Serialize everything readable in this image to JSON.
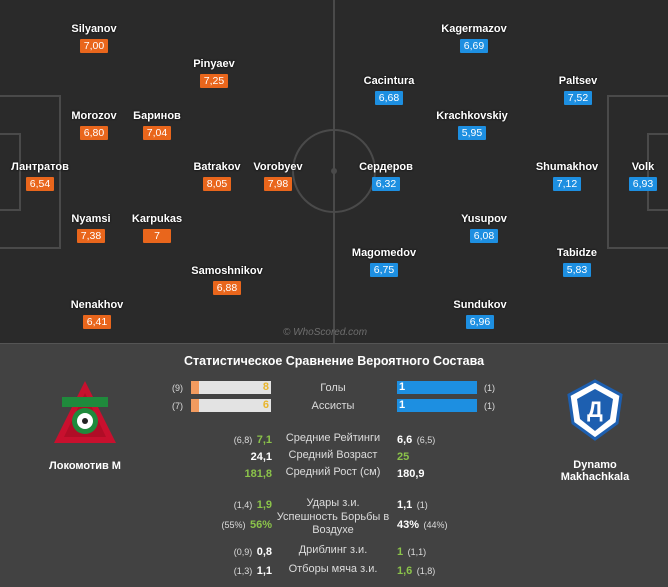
{
  "watermark": "© WhoScored.com",
  "home_players": [
    {
      "name": "Silyanov",
      "rating": "7,00"
    },
    {
      "name": "Pinyaev",
      "rating": "7,25"
    },
    {
      "name": "Morozov",
      "rating": "6,80"
    },
    {
      "name": "Баринов",
      "rating": "7,04"
    },
    {
      "name": "Лантратов",
      "rating": "6,54"
    },
    {
      "name": "Batrakov",
      "rating": "8,05"
    },
    {
      "name": "Vorobyev",
      "rating": "7,98"
    },
    {
      "name": "Nyamsi",
      "rating": "7,38"
    },
    {
      "name": "Karpukas",
      "rating": "7"
    },
    {
      "name": "Samoshnikov",
      "rating": "6,88"
    },
    {
      "name": "Nenakhov",
      "rating": "6,41"
    }
  ],
  "away_players": [
    {
      "name": "Kagermazov",
      "rating": "6,69"
    },
    {
      "name": "Cacintura",
      "rating": "6,68"
    },
    {
      "name": "Paltsev",
      "rating": "7,52"
    },
    {
      "name": "Krachkovskiy",
      "rating": "5,95"
    },
    {
      "name": "Сердеров",
      "rating": "6,32"
    },
    {
      "name": "Shumakhov",
      "rating": "7,12"
    },
    {
      "name": "Volk",
      "rating": "6,93"
    },
    {
      "name": "Yusupov",
      "rating": "6,08"
    },
    {
      "name": "Magomedov",
      "rating": "6,75"
    },
    {
      "name": "Tabidze",
      "rating": "5,83"
    },
    {
      "name": "Sundukov",
      "rating": "6,96"
    }
  ],
  "comparison": {
    "title": "Статистическое Сравнение Вероятного Состава",
    "home_team": "Локомотив М",
    "away_team": "Dynamo Makhachkala",
    "colors": {
      "home": "#e9661c",
      "away": "#1d8fe1",
      "win": "#8bc34a"
    },
    "bars": [
      {
        "label": "Голы",
        "home_prev": "(9)",
        "home": "8",
        "home_fraction": 0.89,
        "away": "1",
        "away_fraction": 0.11,
        "away_prev": "(1)"
      },
      {
        "label": "Ассисты",
        "home_prev": "(7)",
        "home": "6",
        "home_fraction": 0.86,
        "away": "1",
        "away_fraction": 0.14,
        "away_prev": "(1)"
      }
    ],
    "stats": [
      {
        "label": "Средние Рейтинги",
        "home_prev": "(6,8)",
        "home": "7,1",
        "away": "6,6",
        "away_prev": "(6,5)",
        "winner": "home"
      },
      {
        "label": "Средний Возраст",
        "home_prev": "",
        "home": "24,1",
        "away": "25",
        "away_prev": "",
        "winner": "away"
      },
      {
        "label": "Средний Рост (см)",
        "home_prev": "",
        "home": "181,8",
        "away": "180,9",
        "away_prev": "",
        "winner": "home"
      },
      {
        "label": "Удары з.и.",
        "home_prev": "(1,4)",
        "home": "1,9",
        "away": "1,1",
        "away_prev": "(1)",
        "winner": "home"
      },
      {
        "label": "Успешность Борьбы в Воздухе",
        "home_prev": "(55%)",
        "home": "56%",
        "away": "43%",
        "away_prev": "(44%)",
        "winner": "home"
      },
      {
        "label": "Дриблинг з.и.",
        "home_prev": "(0,9)",
        "home": "0,8",
        "away": "1",
        "away_prev": "(1,1)",
        "winner": "away"
      },
      {
        "label": "Отборы мяча з.и.",
        "home_prev": "(1,3)",
        "home": "1,1",
        "away": "1,6",
        "away_prev": "(1,8)",
        "winner": "away"
      }
    ]
  }
}
